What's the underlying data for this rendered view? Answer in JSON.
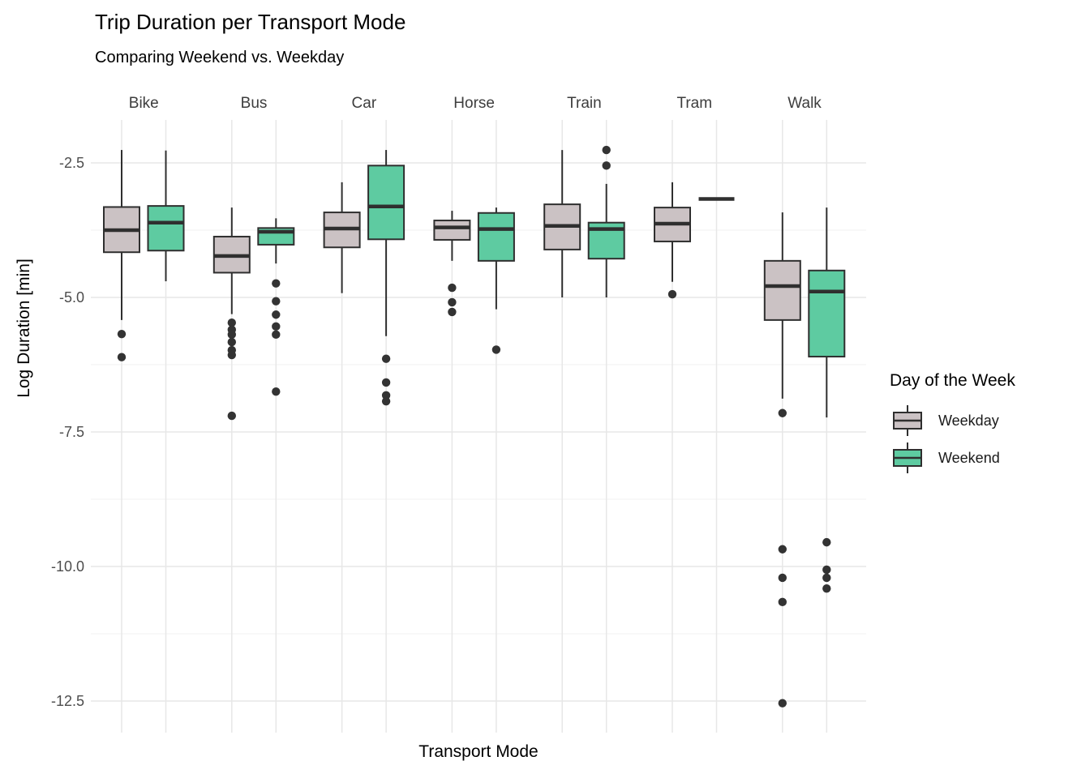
{
  "chart_data": {
    "type": "boxplot",
    "title": "Trip Duration per Transport Mode",
    "subtitle": "Comparing Weekend vs. Weekday",
    "xlabel": "Transport Mode",
    "ylabel": "Log Duration [min]",
    "legend_title": "Day of the Week",
    "categories": [
      "Bike",
      "Bus",
      "Car",
      "Horse",
      "Train",
      "Tram",
      "Walk"
    ],
    "y_ticks": [
      {
        "label": "-2.5",
        "value": -2.5
      },
      {
        "label": "-5.0",
        "value": -5.0
      },
      {
        "label": "-7.5",
        "value": -7.5
      },
      {
        "label": "-10.0",
        "value": -10.0
      },
      {
        "label": "-12.5",
        "value": -12.5
      }
    ],
    "y_minor_ticks": [
      -3.75,
      -6.25,
      -8.75,
      -11.25
    ],
    "ylim": [
      -13.05,
      -1.7
    ],
    "grid": true,
    "legend_position": "right",
    "colors": {
      "weekday_fill": "#CBC2C4",
      "weekend_fill": "#5ECBA1",
      "stroke": "#2F2F2F",
      "grid_major": "#E7E7E7",
      "grid_minor": "#F0F0F0",
      "outlier": "#333333"
    },
    "series": [
      {
        "name": "Weekday",
        "color": "#CBC2C4",
        "boxes": [
          {
            "low": -5.42,
            "q1": -4.16,
            "med": -3.75,
            "q3": -3.32,
            "high": -2.26,
            "outliers": [
              -5.68,
              -6.11
            ]
          },
          {
            "low": -5.31,
            "q1": -4.54,
            "med": -4.23,
            "q3": -3.87,
            "high": -3.33,
            "outliers": [
              -5.47,
              -5.6,
              -5.69,
              -5.83,
              -5.98,
              -6.07,
              -7.2
            ]
          },
          {
            "low": -4.92,
            "q1": -4.07,
            "med": -3.72,
            "q3": -3.42,
            "high": -2.86,
            "outliers": []
          },
          {
            "low": -4.32,
            "q1": -3.93,
            "med": -3.7,
            "q3": -3.57,
            "high": -3.39,
            "outliers": [
              -4.82,
              -5.09,
              -5.27
            ]
          },
          {
            "low": -5.0,
            "q1": -4.11,
            "med": -3.67,
            "q3": -3.27,
            "high": -2.26,
            "outliers": []
          },
          {
            "low": -4.71,
            "q1": -3.96,
            "med": -3.63,
            "q3": -3.33,
            "high": -2.86,
            "outliers": [
              -4.94
            ]
          },
          {
            "low": -6.88,
            "q1": -5.42,
            "med": -4.79,
            "q3": -4.32,
            "high": -3.42,
            "outliers": [
              -7.15,
              -9.68,
              -10.21,
              -10.66,
              -12.54
            ]
          }
        ]
      },
      {
        "name": "Weekend",
        "color": "#5ECBA1",
        "boxes": [
          {
            "low": -4.7,
            "q1": -4.13,
            "med": -3.61,
            "q3": -3.3,
            "high": -2.27,
            "outliers": []
          },
          {
            "low": -4.37,
            "q1": -4.02,
            "med": -3.78,
            "q3": -3.71,
            "high": -3.53,
            "outliers": [
              -4.74,
              -5.07,
              -5.32,
              -5.54,
              -5.69,
              -6.75
            ]
          },
          {
            "low": -5.72,
            "q1": -3.92,
            "med": -3.31,
            "q3": -2.55,
            "high": -2.26,
            "outliers": [
              -6.14,
              -6.58,
              -6.82,
              -6.93
            ]
          },
          {
            "low": -5.22,
            "q1": -4.32,
            "med": -3.73,
            "q3": -3.43,
            "high": -3.33,
            "outliers": [
              -5.97
            ]
          },
          {
            "low": -5.0,
            "q1": -4.28,
            "med": -3.73,
            "q3": -3.61,
            "high": -2.89,
            "outliers": [
              -2.26,
              -2.55
            ]
          },
          {
            "low": null,
            "q1": -3.17,
            "med": -3.17,
            "q3": -3.17,
            "high": null,
            "outliers": []
          },
          {
            "low": -7.23,
            "q1": -6.1,
            "med": -4.89,
            "q3": -4.5,
            "high": -3.33,
            "outliers": [
              -9.55,
              -10.06,
              -10.21,
              -10.41
            ]
          }
        ]
      }
    ]
  }
}
